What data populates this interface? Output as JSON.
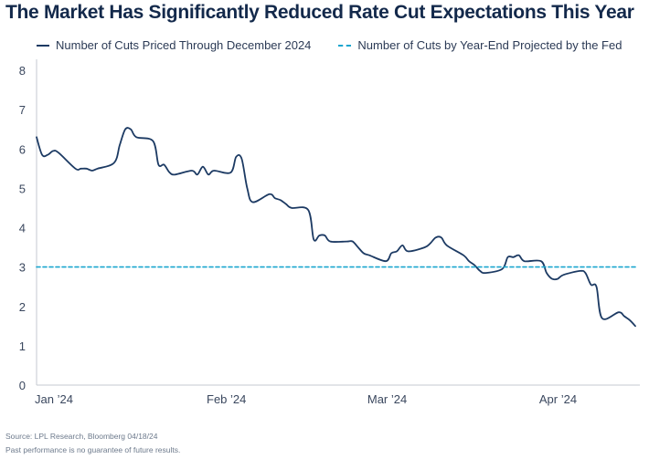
{
  "chart_data": {
    "type": "line",
    "title": "The Market Has Significantly Reduced Rate Cut Expectations This Year",
    "xlabel": "",
    "ylabel": "",
    "ylim": [
      0,
      8
    ],
    "yticks": [
      "0",
      "1",
      "2",
      "3",
      "4",
      "5",
      "6",
      "7",
      "8"
    ],
    "xlim": [
      "2024-01-01",
      "2024-04-18"
    ],
    "xticks": [
      {
        "label": "Jan ’24",
        "date": "2024-01-01"
      },
      {
        "label": "Feb ’24",
        "date": "2024-02-01"
      },
      {
        "label": "Mar ’24",
        "date": "2024-03-01"
      },
      {
        "label": "Apr ’24",
        "date": "2024-04-01"
      }
    ],
    "grid": false,
    "legend_position": "top",
    "series": [
      {
        "name": "Number of Cuts Priced Through December 2024",
        "color": "#1c3a63",
        "style": "solid",
        "points": [
          [
            "2024-01-01",
            6.3
          ],
          [
            "2024-01-02",
            5.85
          ],
          [
            "2024-01-03",
            5.85
          ],
          [
            "2024-01-04",
            5.95
          ],
          [
            "2024-01-05",
            5.9
          ],
          [
            "2024-01-08",
            5.5
          ],
          [
            "2024-01-09",
            5.5
          ],
          [
            "2024-01-10",
            5.5
          ],
          [
            "2024-01-11",
            5.45
          ],
          [
            "2024-01-12",
            5.5
          ],
          [
            "2024-01-15",
            5.65
          ],
          [
            "2024-01-16",
            6.1
          ],
          [
            "2024-01-17",
            6.5
          ],
          [
            "2024-01-18",
            6.5
          ],
          [
            "2024-01-19",
            6.3
          ],
          [
            "2024-01-22",
            6.2
          ],
          [
            "2024-01-23",
            5.6
          ],
          [
            "2024-01-24",
            5.6
          ],
          [
            "2024-01-25",
            5.4
          ],
          [
            "2024-01-26",
            5.35
          ],
          [
            "2024-01-29",
            5.45
          ],
          [
            "2024-01-30",
            5.35
          ],
          [
            "2024-01-31",
            5.55
          ],
          [
            "2024-02-01",
            5.35
          ],
          [
            "2024-02-02",
            5.45
          ],
          [
            "2024-02-05",
            5.4
          ],
          [
            "2024-02-06",
            5.8
          ],
          [
            "2024-02-07",
            5.75
          ],
          [
            "2024-02-08",
            5.0
          ],
          [
            "2024-02-09",
            4.65
          ],
          [
            "2024-02-12",
            4.85
          ],
          [
            "2024-02-13",
            4.75
          ],
          [
            "2024-02-14",
            4.7
          ],
          [
            "2024-02-15",
            4.6
          ],
          [
            "2024-02-16",
            4.5
          ],
          [
            "2024-02-19",
            4.45
          ],
          [
            "2024-02-20",
            3.7
          ],
          [
            "2024-02-21",
            3.8
          ],
          [
            "2024-02-22",
            3.8
          ],
          [
            "2024-02-23",
            3.65
          ],
          [
            "2024-02-26",
            3.65
          ],
          [
            "2024-02-27",
            3.65
          ],
          [
            "2024-02-28",
            3.5
          ],
          [
            "2024-02-29",
            3.35
          ],
          [
            "2024-03-01",
            3.3
          ],
          [
            "2024-03-04",
            3.15
          ],
          [
            "2024-03-05",
            3.35
          ],
          [
            "2024-03-06",
            3.4
          ],
          [
            "2024-03-07",
            3.55
          ],
          [
            "2024-03-08",
            3.4
          ],
          [
            "2024-03-11",
            3.5
          ],
          [
            "2024-03-12",
            3.6
          ],
          [
            "2024-03-13",
            3.75
          ],
          [
            "2024-03-14",
            3.75
          ],
          [
            "2024-03-15",
            3.55
          ],
          [
            "2024-03-18",
            3.3
          ],
          [
            "2024-03-19",
            3.15
          ],
          [
            "2024-03-20",
            3.05
          ],
          [
            "2024-03-21",
            2.9
          ],
          [
            "2024-03-22",
            2.85
          ],
          [
            "2024-03-25",
            2.95
          ],
          [
            "2024-03-26",
            3.25
          ],
          [
            "2024-03-27",
            3.25
          ],
          [
            "2024-03-28",
            3.3
          ],
          [
            "2024-03-29",
            3.15
          ],
          [
            "2024-04-01",
            3.15
          ],
          [
            "2024-04-02",
            2.85
          ],
          [
            "2024-04-03",
            2.7
          ],
          [
            "2024-04-04",
            2.7
          ],
          [
            "2024-04-05",
            2.8
          ],
          [
            "2024-04-08",
            2.9
          ],
          [
            "2024-04-09",
            2.85
          ],
          [
            "2024-04-10",
            2.55
          ],
          [
            "2024-04-11",
            2.5
          ],
          [
            "2024-04-12",
            1.7
          ],
          [
            "2024-04-15",
            1.85
          ],
          [
            "2024-04-16",
            1.75
          ],
          [
            "2024-04-17",
            1.65
          ],
          [
            "2024-04-18",
            1.5
          ]
        ]
      },
      {
        "name": "Number of Cuts by Year-End Projected by the Fed",
        "color": "#1aa6cf",
        "style": "dashed",
        "points": [
          [
            "2024-01-01",
            3
          ],
          [
            "2024-04-18",
            3
          ]
        ]
      }
    ]
  },
  "footer": {
    "source": "Source: LPL Research, Bloomberg 04/18/24",
    "disclaimer": "Past performance is no guarantee of future results."
  }
}
